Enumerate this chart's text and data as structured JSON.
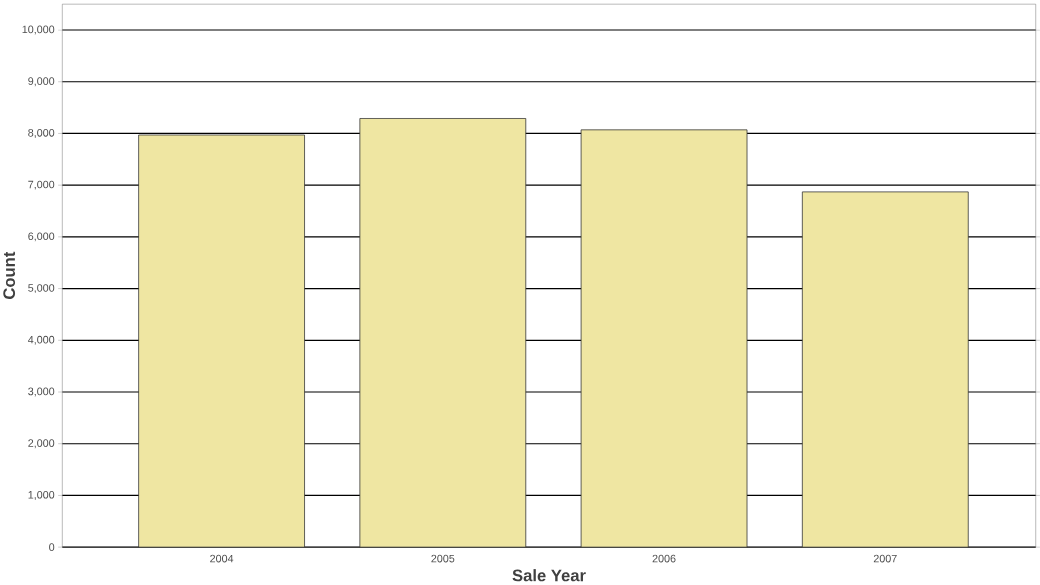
{
  "chart_data": {
    "type": "bar",
    "xlabel": "Sale Year",
    "ylabel": "Count",
    "categories": [
      "2004",
      "2005",
      "2006",
      "2007"
    ],
    "values": [
      7970,
      8290,
      8070,
      6870
    ],
    "color": "#efe6a2",
    "ylim": [
      0,
      10500
    ],
    "yticks": [
      0,
      {
        "value": 1000,
        "label": "1,000"
      },
      {
        "value": 2000,
        "label": "2,000"
      },
      {
        "value": 3000,
        "label": "3,000"
      },
      {
        "value": 4000,
        "label": "4,000"
      },
      {
        "value": 5000,
        "label": "5,000"
      },
      {
        "value": 6000,
        "label": "6,000"
      },
      {
        "value": 7000,
        "label": "7,000"
      },
      {
        "value": 8000,
        "label": "8,000"
      },
      {
        "value": 9000,
        "label": "9,000"
      },
      {
        "value": 10000,
        "label": "10,000"
      }
    ],
    "grid": "y"
  }
}
